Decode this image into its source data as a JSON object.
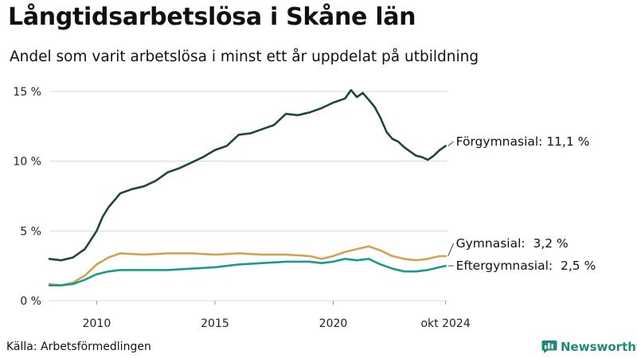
{
  "header": {
    "title": "Långtidsarbetslösa i Skåne län",
    "subtitle": "Andel som varit arbetslösa i minst ett år uppdelat på utbildning"
  },
  "footer": {
    "source": "Källa: Arbetsförmedlingen",
    "brand": "Newsworthy",
    "brand_icon": "newsworthy-logo-icon"
  },
  "chart_data": {
    "type": "line",
    "x_unit": "year (decimal)",
    "xlim": [
      2008.0,
      2024.83
    ],
    "ylim": [
      0,
      15
    ],
    "y_ticks": [
      0,
      5,
      10,
      15
    ],
    "y_tick_labels": [
      "0 %",
      "5 %",
      "10 %",
      "15 %"
    ],
    "x_ticks": [
      2010,
      2015,
      2020,
      2024.75
    ],
    "x_tick_labels": [
      "2010",
      "2015",
      "2020",
      "okt 2024"
    ],
    "grid": true,
    "legend": "end-of-line labels",
    "series": [
      {
        "name": "Förgymnasial",
        "end_label": "Förgymnasial: 11,1 %",
        "color": "#1d4640",
        "x": [
          2008.0,
          2008.5,
          2009.0,
          2009.5,
          2010.0,
          2010.25,
          2010.5,
          2011.0,
          2011.5,
          2012.0,
          2012.5,
          2013.0,
          2013.5,
          2014.0,
          2014.5,
          2015.0,
          2015.5,
          2016.0,
          2016.5,
          2017.0,
          2017.5,
          2018.0,
          2018.5,
          2019.0,
          2019.5,
          2020.0,
          2020.5,
          2020.75,
          2021.0,
          2021.25,
          2021.5,
          2021.75,
          2022.0,
          2022.25,
          2022.5,
          2022.75,
          2023.0,
          2023.25,
          2023.5,
          2023.75,
          2024.0,
          2024.25,
          2024.5,
          2024.75
        ],
        "values": [
          3.0,
          2.9,
          3.1,
          3.7,
          5.0,
          6.0,
          6.7,
          7.7,
          8.0,
          8.2,
          8.6,
          9.2,
          9.5,
          9.9,
          10.3,
          10.8,
          11.1,
          11.9,
          12.0,
          12.3,
          12.6,
          13.4,
          13.3,
          13.5,
          13.8,
          14.2,
          14.5,
          15.1,
          14.6,
          14.9,
          14.4,
          13.9,
          13.1,
          12.1,
          11.6,
          11.4,
          11.0,
          10.7,
          10.4,
          10.3,
          10.1,
          10.4,
          10.8,
          11.1
        ]
      },
      {
        "name": "Gymnasial",
        "end_label": "Gymnasial:  3,2 %",
        "color": "#d4a14e",
        "x": [
          2008.0,
          2008.5,
          2009.0,
          2009.5,
          2010.0,
          2010.5,
          2011.0,
          2012.0,
          2013.0,
          2014.0,
          2015.0,
          2016.0,
          2017.0,
          2018.0,
          2019.0,
          2019.5,
          2020.0,
          2020.5,
          2021.0,
          2021.5,
          2022.0,
          2022.5,
          2023.0,
          2023.5,
          2024.0,
          2024.5,
          2024.75
        ],
        "values": [
          1.2,
          1.1,
          1.3,
          1.8,
          2.6,
          3.1,
          3.4,
          3.3,
          3.4,
          3.4,
          3.3,
          3.4,
          3.3,
          3.3,
          3.2,
          3.0,
          3.2,
          3.5,
          3.7,
          3.9,
          3.6,
          3.2,
          3.0,
          2.9,
          3.0,
          3.2,
          3.2
        ]
      },
      {
        "name": "Eftergymnasial",
        "end_label": "Eftergymnasial:  2,5 %",
        "color": "#1a9a89",
        "x": [
          2008.0,
          2008.5,
          2009.0,
          2009.5,
          2010.0,
          2010.5,
          2011.0,
          2012.0,
          2013.0,
          2014.0,
          2015.0,
          2016.0,
          2017.0,
          2018.0,
          2019.0,
          2019.5,
          2020.0,
          2020.5,
          2021.0,
          2021.5,
          2022.0,
          2022.5,
          2023.0,
          2023.5,
          2024.0,
          2024.5,
          2024.75
        ],
        "values": [
          1.1,
          1.1,
          1.2,
          1.5,
          1.9,
          2.1,
          2.2,
          2.2,
          2.2,
          2.3,
          2.4,
          2.6,
          2.7,
          2.8,
          2.8,
          2.7,
          2.8,
          3.0,
          2.9,
          3.0,
          2.6,
          2.3,
          2.1,
          2.1,
          2.2,
          2.4,
          2.5
        ]
      }
    ]
  }
}
